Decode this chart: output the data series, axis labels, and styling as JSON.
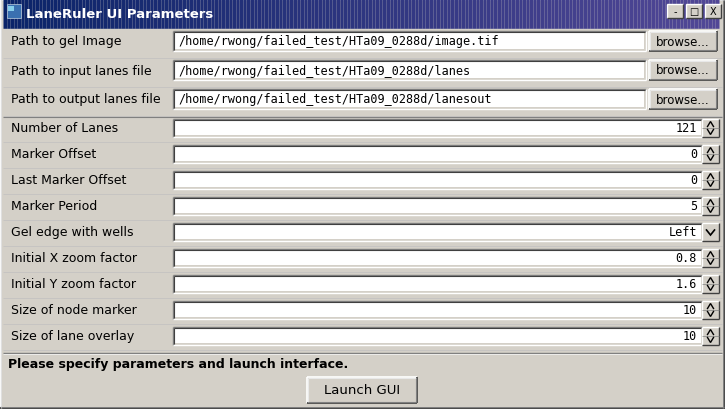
{
  "title": "LaneRuler UI Parameters",
  "bg_color": "#d4d0c8",
  "title_bar_color": "#0a246a",
  "field_bg": "#ffffff",
  "rows": [
    {
      "label": "Path to gel Image",
      "value": "/home/rwong/failed_test/HTa09_0288d/image.tif",
      "type": "browse"
    },
    {
      "label": "Path to input lanes file",
      "value": "/home/rwong/failed_test/HTa09_0288d/lanes",
      "type": "browse"
    },
    {
      "label": "Path to output lanes file",
      "value": "/home/rwong/failed_test/HTa09_0288d/lanesout",
      "type": "browse"
    },
    {
      "label": "Number of Lanes",
      "value": "121",
      "type": "spin"
    },
    {
      "label": "Marker Offset",
      "value": "0",
      "type": "spin"
    },
    {
      "label": "Last Marker Offset",
      "value": "0",
      "type": "spin"
    },
    {
      "label": "Marker Period",
      "value": "5",
      "type": "spin"
    },
    {
      "label": "Gel edge with wells",
      "value": "Left",
      "type": "dropdown"
    },
    {
      "label": "Initial X zoom factor",
      "value": "0.8",
      "type": "spin"
    },
    {
      "label": "Initial Y zoom factor",
      "value": "1.6",
      "type": "spin"
    },
    {
      "label": "Size of node marker",
      "value": "10",
      "type": "spin"
    },
    {
      "label": "Size of lane overlay",
      "value": "10",
      "type": "spin"
    }
  ],
  "status_text": "Please specify parameters and launch interface.",
  "launch_btn": "Launch GUI",
  "label_fontsize": 9,
  "value_fontsize": 9,
  "title_fontsize": 9.5
}
